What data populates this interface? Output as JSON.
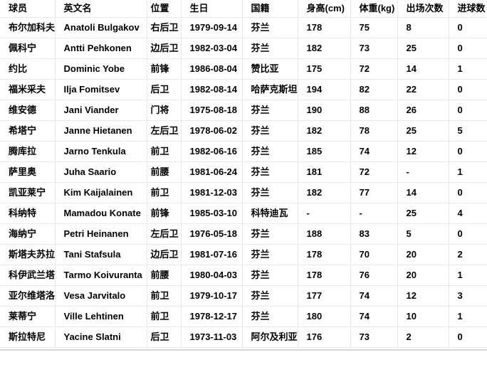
{
  "table": {
    "columns": [
      "球员",
      "英文名",
      "位置",
      "生日",
      "国籍",
      "身高(cm)",
      "体重(kg)",
      "出场次数",
      "进球数"
    ],
    "rows": [
      [
        "布尔加科夫",
        "Anatoli Bulgakov",
        "右后卫",
        "1979-09-14",
        "芬兰",
        "178",
        "75",
        "8",
        "0"
      ],
      [
        "佩科宁",
        "Antti Pehkonen",
        "边后卫",
        "1982-03-04",
        "芬兰",
        "182",
        "73",
        "25",
        "0"
      ],
      [
        "约比",
        "Dominic Yobe",
        "前锋",
        "1986-08-04",
        "赞比亚",
        "175",
        "72",
        "14",
        "1"
      ],
      [
        "福米采夫",
        "Ilja Fomitsev",
        "后卫",
        "1982-08-14",
        "哈萨克斯坦",
        "194",
        "82",
        "22",
        "0"
      ],
      [
        "维安德",
        "Jani Viander",
        "门将",
        "1975-08-18",
        "芬兰",
        "190",
        "88",
        "26",
        "0"
      ],
      [
        "希塔宁",
        "Janne Hietanen",
        "左后卫",
        "1978-06-02",
        "芬兰",
        "182",
        "78",
        "25",
        "5"
      ],
      [
        "腾库拉",
        "Jarno Tenkula",
        "前卫",
        "1982-06-16",
        "芬兰",
        "185",
        "74",
        "12",
        "0"
      ],
      [
        "萨里奥",
        "Juha Saario",
        "前腰",
        "1981-06-24",
        "芬兰",
        "181",
        "72",
        "-",
        "1"
      ],
      [
        "凯亚莱宁",
        "Kim Kaijalainen",
        "前卫",
        "1981-12-03",
        "芬兰",
        "182",
        "77",
        "14",
        "0"
      ],
      [
        "科纳特",
        "Mamadou Konate",
        "前锋",
        "1985-03-10",
        "科特迪瓦",
        "-",
        "-",
        "25",
        "4"
      ],
      [
        "海纳宁",
        "Petri Heinanen",
        "左后卫",
        "1976-05-18",
        "芬兰",
        "188",
        "83",
        "5",
        "0"
      ],
      [
        "斯塔夫苏拉",
        "Tani Stafsula",
        "边后卫",
        "1981-07-16",
        "芬兰",
        "178",
        "70",
        "20",
        "2"
      ],
      [
        "科伊武兰塔",
        "Tarmo Koivuranta",
        "前腰",
        "1980-04-03",
        "芬兰",
        "178",
        "76",
        "20",
        "1"
      ],
      [
        "亚尔维塔洛",
        "Vesa Jarvitalo",
        "前卫",
        "1979-10-17",
        "芬兰",
        "177",
        "74",
        "12",
        "3"
      ],
      [
        "莱蒂宁",
        "Ville Lehtinen",
        "前卫",
        "1978-12-17",
        "芬兰",
        "180",
        "74",
        "10",
        "1"
      ],
      [
        "斯拉特尼",
        "Yacine Slatni",
        "后卫",
        "1973-11-03",
        "阿尔及利亚",
        "176",
        "73",
        "2",
        "0"
      ]
    ]
  },
  "colors": {
    "background": "#ffffff",
    "text": "#000000",
    "grid_border": "#e8e8e8",
    "bottom_rule": "#d6d6d6"
  }
}
